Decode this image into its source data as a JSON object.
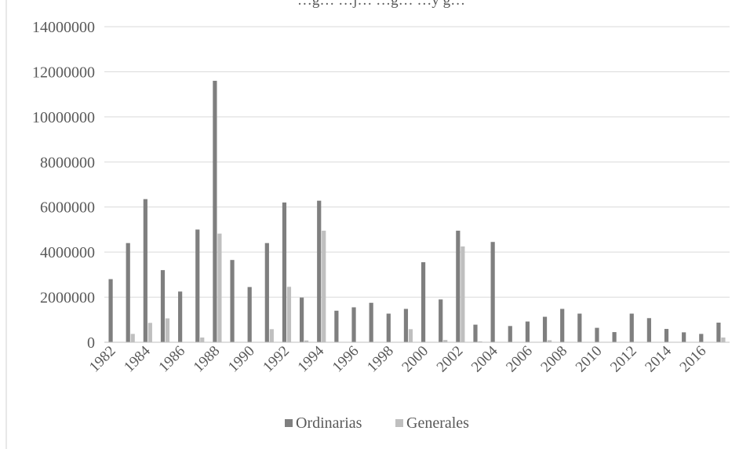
{
  "chart_data": {
    "type": "bar",
    "title": "…g… …j… …g… …y g…",
    "xlabel": "",
    "ylabel": "",
    "ylim": [
      0,
      14000000
    ],
    "y_ticks": [
      "0",
      "2000000",
      "4000000",
      "6000000",
      "8000000",
      "10000000",
      "12000000",
      "14000000"
    ],
    "x_tick_labels": [
      "1982",
      "1984",
      "1986",
      "1988",
      "1990",
      "1992",
      "1994",
      "1996",
      "1998",
      "2000",
      "2002",
      "2004",
      "2006",
      "2008",
      "2010",
      "2012",
      "2014",
      "2016"
    ],
    "categories": [
      "1982",
      "1983",
      "1984",
      "1985",
      "1986",
      "1987",
      "1988",
      "1989",
      "1990",
      "1991",
      "1992",
      "1993",
      "1994",
      "1995",
      "1996",
      "1997",
      "1998",
      "1999",
      "2000",
      "2001",
      "2002",
      "2003",
      "2004",
      "2005",
      "2006",
      "2007",
      "2008",
      "2009",
      "2010",
      "2011",
      "2012",
      "2013",
      "2014",
      "2015",
      "2016",
      "2017"
    ],
    "series": [
      {
        "name": "Ordinarias",
        "color": "#7f7f7f",
        "values": [
          2800000,
          4400000,
          6350000,
          3200000,
          2250000,
          5000000,
          11600000,
          3650000,
          2450000,
          4400000,
          6200000,
          1980000,
          6280000,
          1400000,
          1550000,
          1750000,
          1270000,
          1480000,
          3550000,
          1900000,
          4950000,
          780000,
          4450000,
          720000,
          920000,
          1130000,
          1480000,
          1270000,
          640000,
          450000,
          1270000,
          1070000,
          590000,
          440000,
          370000,
          870000
        ]
      },
      {
        "name": "Generales",
        "color": "#bfbfbf",
        "values": [
          0,
          370000,
          860000,
          1060000,
          0,
          210000,
          4820000,
          0,
          0,
          580000,
          2460000,
          80000,
          4950000,
          0,
          0,
          0,
          0,
          580000,
          0,
          100000,
          4250000,
          40000,
          0,
          0,
          0,
          90000,
          0,
          0,
          0,
          0,
          0,
          0,
          0,
          0,
          0,
          210000
        ]
      }
    ],
    "grid": true,
    "legend_position": "bottom"
  }
}
